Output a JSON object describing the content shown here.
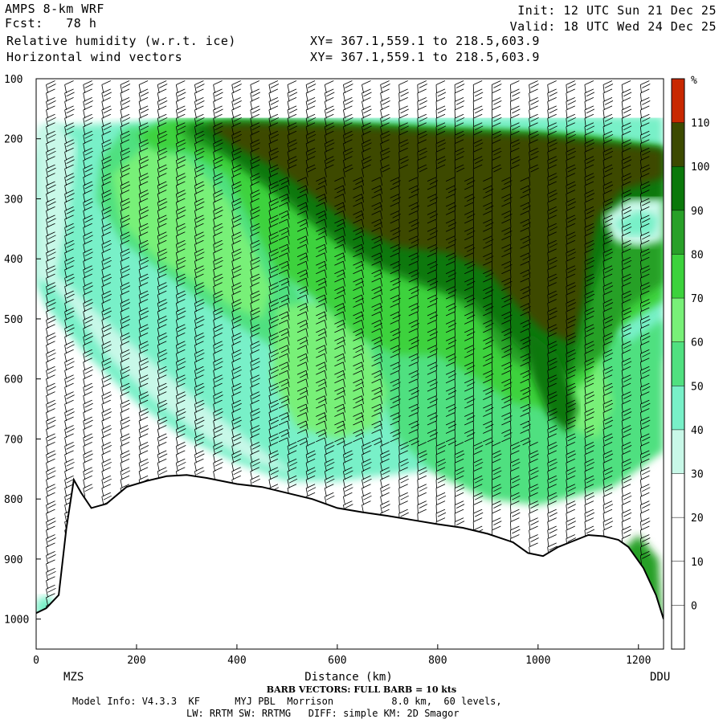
{
  "header": {
    "model": "AMPS 8-km WRF",
    "fcst_label": "Fcst:",
    "fcst_value": "78 h",
    "field1": "Relative humidity (w.r.t. ice)",
    "field2": "Horizontal wind vectors",
    "init": "Init: 12 UTC Sun 21 Dec 25",
    "valid": "Valid: 18 UTC Wed 24 Dec 25",
    "xy1": "XY= 367.1,559.1 to 218.5,603.9",
    "xy2": "XY= 367.1,559.1 to 218.5,603.9"
  },
  "footer": {
    "barb": "BARB VECTORS: FULL BARB = 10 kts",
    "model_info": "Model Info: V4.3.3  KF      MYJ PBL  Morrison          8.0 km,  60 levels,",
    "model_info2": "LW: RRTM SW: RRTMG   DIFF: simple KM: 2D Smagor"
  },
  "chart_data": {
    "type": "heatmap",
    "title": "Relative humidity (w.r.t. ice)",
    "xlabel": "Distance (km)",
    "ylabel": "",
    "x_ticks": [
      0,
      200,
      400,
      600,
      800,
      1000,
      1200
    ],
    "y_ticks": [
      100,
      200,
      300,
      400,
      500,
      600,
      700,
      800,
      900,
      1000
    ],
    "xlim": [
      0,
      1250
    ],
    "ylim": [
      100,
      1050
    ],
    "x_end_labels": {
      "left": "MZS",
      "right": "DDU"
    },
    "colorbar": {
      "unit": "%",
      "levels": [
        0,
        10,
        20,
        30,
        40,
        50,
        60,
        70,
        80,
        90,
        100,
        110
      ],
      "colors": [
        "#ffffff",
        "#ffffff",
        "#ffffff",
        "#ffffff",
        "#c8f8e8",
        "#78f0c8",
        "#50e080",
        "#78f078",
        "#3cd23c",
        "#28a028",
        "#0a780a",
        "#3c4a00",
        "#c82800"
      ]
    },
    "grid": false,
    "terrain_km_hpa": [
      [
        0,
        990
      ],
      [
        20,
        982
      ],
      [
        45,
        960
      ],
      [
        60,
        850
      ],
      [
        75,
        768
      ],
      [
        90,
        790
      ],
      [
        110,
        815
      ],
      [
        140,
        808
      ],
      [
        180,
        780
      ],
      [
        220,
        770
      ],
      [
        260,
        762
      ],
      [
        300,
        760
      ],
      [
        340,
        765
      ],
      [
        400,
        775
      ],
      [
        450,
        780
      ],
      [
        500,
        790
      ],
      [
        550,
        800
      ],
      [
        600,
        815
      ],
      [
        650,
        822
      ],
      [
        700,
        828
      ],
      [
        750,
        835
      ],
      [
        800,
        842
      ],
      [
        850,
        848
      ],
      [
        900,
        858
      ],
      [
        950,
        872
      ],
      [
        980,
        890
      ],
      [
        1010,
        895
      ],
      [
        1040,
        880
      ],
      [
        1070,
        870
      ],
      [
        1100,
        860
      ],
      [
        1130,
        862
      ],
      [
        1160,
        868
      ],
      [
        1180,
        880
      ],
      [
        1210,
        915
      ],
      [
        1235,
        960
      ],
      [
        1250,
        1000
      ]
    ]
  }
}
